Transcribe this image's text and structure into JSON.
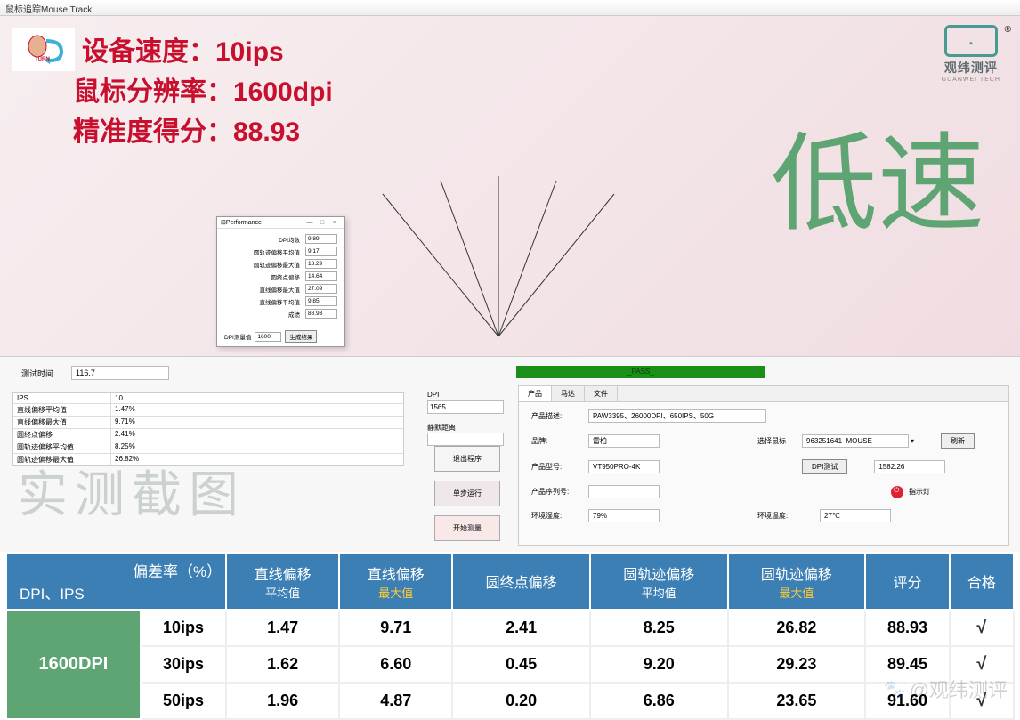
{
  "window_title": "鼠标追踪Mouse Track",
  "stats": {
    "line1_label": "设备速度：",
    "line1_value": "10ips",
    "line2_label": "鼠标分辨率：",
    "line2_value": "1600dpi",
    "line3_label": "精准度得分：",
    "line3_value": "88.93"
  },
  "brand": {
    "name": "观纬测评",
    "sub": "GUANWEI TECH"
  },
  "big_word": "低速",
  "perf": {
    "title": "Performance",
    "rows": [
      {
        "label": "DPI均数",
        "value": "9.89"
      },
      {
        "label": "圆轨迹偏移平均值",
        "value": "9.17"
      },
      {
        "label": "圆轨迹偏移最大值",
        "value": "18.29"
      },
      {
        "label": "圆终点偏移",
        "value": "14.64"
      },
      {
        "label": "直线偏移最大值",
        "value": "27.09"
      },
      {
        "label": "直线偏移平均值",
        "value": "9.85"
      },
      {
        "label": "成绩",
        "value": "88.93"
      }
    ],
    "foot_label": "DPI测量值",
    "foot_value": "1600",
    "foot_btn": "生成结果"
  },
  "test_time": {
    "label": "测试时间",
    "value": "116.7"
  },
  "pass": "_PASS_",
  "ips_table": [
    {
      "k": "IPS",
      "v": "10"
    },
    {
      "k": "直线偏移平均值",
      "v": "1.47%"
    },
    {
      "k": "直线偏移最大值",
      "v": "9.71%"
    },
    {
      "k": "圆终点偏移",
      "v": "2.41%"
    },
    {
      "k": "圆轨迹偏移平均值",
      "v": "8.25%"
    },
    {
      "k": "圆轨迹偏移最大值",
      "v": "26.82%"
    }
  ],
  "watermark1": "实测截图",
  "dpi_block": {
    "label": "DPI",
    "value": "1565",
    "label2": "静默距离"
  },
  "ctrl_btns": {
    "b1": "退出程序",
    "b2": "单步运行",
    "b3": "开始测量"
  },
  "info": {
    "tabs": [
      "产品",
      "马达",
      "文件"
    ],
    "desc_label": "产品描述:",
    "desc_value": "PAW3395、26000DPI、650IPS、50G",
    "brand_label": "品牌:",
    "brand_value": "雷柏",
    "select_label": "选择鼠标",
    "select_value": "963251641  MOUSE",
    "refresh_btn": "刷新",
    "model_label": "产品型号:",
    "model_value": "VT950PRO-4K",
    "dpi_btn": "DPI测试",
    "dpi_value": "1582.26",
    "serial_label": "产品序列号:",
    "indicator": "指示灯",
    "humidity_label": "环境湿度:",
    "humidity_value": "79%",
    "temp_label": "环境温度:",
    "temp_value": "27℃"
  },
  "table": {
    "corner_top": "偏差率（%）",
    "corner_bot": "DPI、IPS",
    "headers": [
      {
        "l1": "直线偏移",
        "l2": "平均值",
        "max": false
      },
      {
        "l1": "直线偏移",
        "l2": "最大值",
        "max": true
      },
      {
        "l1": "圆终点偏移",
        "l2": "",
        "max": false
      },
      {
        "l1": "圆轨迹偏移",
        "l2": "平均值",
        "max": false
      },
      {
        "l1": "圆轨迹偏移",
        "l2": "最大值",
        "max": true
      },
      {
        "l1": "评分",
        "l2": "",
        "max": false
      },
      {
        "l1": "合格",
        "l2": "",
        "max": false
      }
    ],
    "dpi": "1600DPI",
    "rows": [
      {
        "ips": "10ips",
        "v": [
          "1.47",
          "9.71",
          "2.41",
          "8.25",
          "26.82",
          "88.93",
          "√"
        ]
      },
      {
        "ips": "30ips",
        "v": [
          "1.62",
          "6.60",
          "0.45",
          "9.20",
          "29.23",
          "89.45",
          "√"
        ]
      },
      {
        "ips": "50ips",
        "v": [
          "1.96",
          "4.87",
          "0.20",
          "6.86",
          "23.65",
          "91.60",
          "√"
        ]
      }
    ]
  },
  "bottom_wm": "@观纬测评",
  "colors": {
    "header_bg": "#3b7fb5",
    "dpi_bg": "#5fa573",
    "stat_color": "#c8102e",
    "max_color": "#ffcc33",
    "pass_bg": "#1a8f1a"
  }
}
